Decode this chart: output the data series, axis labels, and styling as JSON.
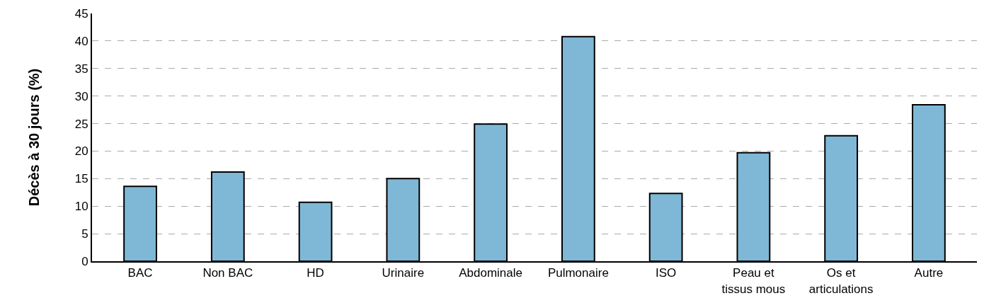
{
  "chart_data": {
    "type": "bar",
    "ylabel": "Décès à 30 jours (%)",
    "categories": [
      "BAC",
      "Non BAC",
      "HD",
      "Urinaire",
      "Abdominale",
      "Pulmonaire",
      "ISO",
      "Peau et\ntissus mous",
      "Os et\narticulations",
      "Autre"
    ],
    "values": [
      13.6,
      16.2,
      10.7,
      15.0,
      24.9,
      40.8,
      12.3,
      19.7,
      22.8,
      28.4
    ],
    "color": "#7fb8d6",
    "ylim": [
      0,
      45
    ],
    "yticks": [
      0,
      5,
      10,
      15,
      20,
      25,
      30,
      35,
      40,
      45
    ],
    "grid": "y"
  }
}
